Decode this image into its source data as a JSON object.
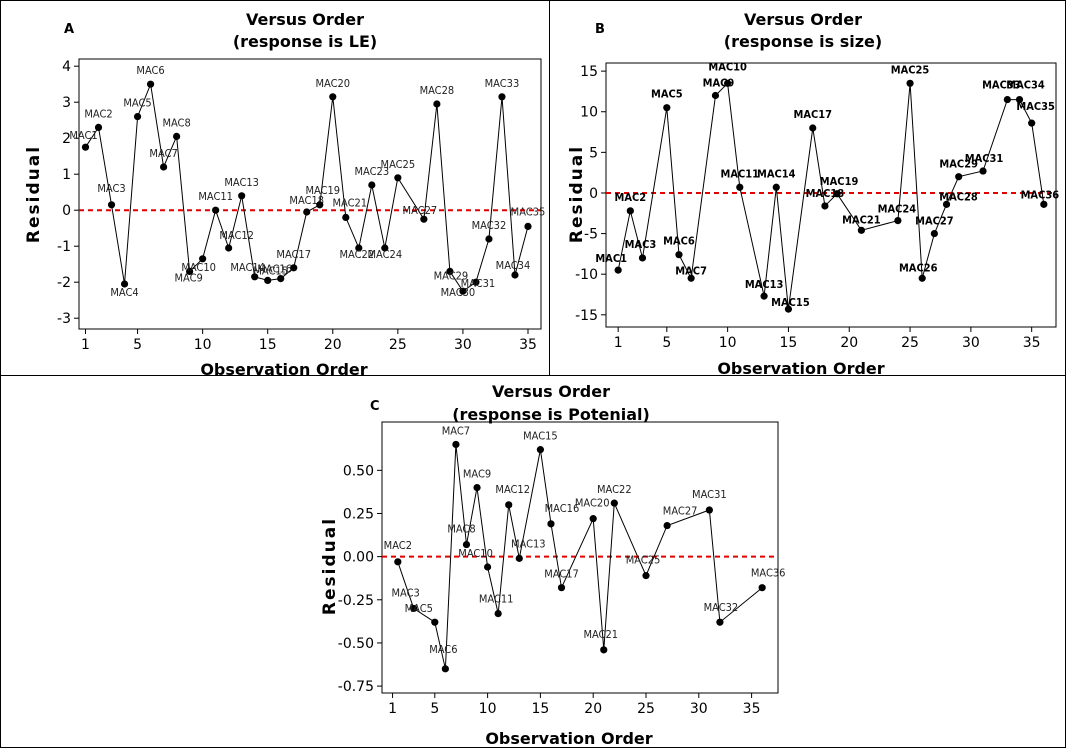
{
  "chart_data": [
    {
      "type": "line",
      "panel_letter": "A",
      "title": "Versus Order",
      "subtitle": "(response is LE)",
      "xlabel": "Observation Order",
      "ylabel": "Residual",
      "xlim": [
        0.5,
        36
      ],
      "ylim": [
        -3.3,
        4.2
      ],
      "xticks": [
        1,
        5,
        10,
        15,
        20,
        25,
        30,
        35
      ],
      "yticks": [
        -3,
        -2,
        -1,
        0,
        1,
        2,
        3,
        4
      ],
      "reference_line": 0,
      "points": [
        {
          "label": "MAC1",
          "x": 1,
          "y": 1.75
        },
        {
          "label": "MAC2",
          "x": 2,
          "y": 2.3
        },
        {
          "label": "MAC3",
          "x": 3,
          "y": 0.15
        },
        {
          "label": "MAC4",
          "x": 4,
          "y": -2.05
        },
        {
          "label": "MAC5",
          "x": 5,
          "y": 2.6
        },
        {
          "label": "MAC6",
          "x": 6,
          "y": 3.5
        },
        {
          "label": "MAC7",
          "x": 7,
          "y": 1.2
        },
        {
          "label": "MAC8",
          "x": 8,
          "y": 2.05
        },
        {
          "label": "MAC9",
          "x": 9,
          "y": -1.7
        },
        {
          "label": "MAC10",
          "x": 10,
          "y": -1.35
        },
        {
          "label": "MAC11",
          "x": 11,
          "y": 0.0
        },
        {
          "label": "MAC12",
          "x": 12,
          "y": -1.05
        },
        {
          "label": "MAC13",
          "x": 13,
          "y": 0.4
        },
        {
          "label": "MAC14",
          "x": 14,
          "y": -1.85
        },
        {
          "label": "MAC15",
          "x": 15,
          "y": -1.95
        },
        {
          "label": "MAC16",
          "x": 16,
          "y": -1.9
        },
        {
          "label": "MAC17",
          "x": 17,
          "y": -1.6
        },
        {
          "label": "MAC18",
          "x": 18,
          "y": -0.05
        },
        {
          "label": "MAC19",
          "x": 19,
          "y": 0.15
        },
        {
          "label": "MAC20",
          "x": 20,
          "y": 3.15
        },
        {
          "label": "MAC21",
          "x": 21,
          "y": -0.2
        },
        {
          "label": "MAC22",
          "x": 22,
          "y": -1.05
        },
        {
          "label": "MAC23",
          "x": 23,
          "y": 0.7
        },
        {
          "label": "MAC24",
          "x": 24,
          "y": -1.05
        },
        {
          "label": "MAC25",
          "x": 25,
          "y": 0.9
        },
        {
          "label": "MAC27",
          "x": 27,
          "y": -0.25
        },
        {
          "label": "MAC28",
          "x": 28,
          "y": 2.95
        },
        {
          "label": "MAC29",
          "x": 29,
          "y": -1.7
        },
        {
          "label": "MAC30",
          "x": 30,
          "y": -2.25
        },
        {
          "label": "MAC31",
          "x": 31,
          "y": -2.0
        },
        {
          "label": "MAC32",
          "x": 32,
          "y": -0.8
        },
        {
          "label": "MAC33",
          "x": 33,
          "y": 3.15
        },
        {
          "label": "MAC34",
          "x": 34,
          "y": -1.8
        },
        {
          "label": "MAC35",
          "x": 35,
          "y": -0.45
        }
      ]
    },
    {
      "type": "line",
      "panel_letter": "B",
      "title": "Versus Order",
      "subtitle": "(response is size)",
      "xlabel": "Observation Order",
      "ylabel": "Residual",
      "xlim": [
        0,
        37
      ],
      "ylim": [
        -16.5,
        16
      ],
      "xticks": [
        1,
        5,
        10,
        15,
        20,
        25,
        30,
        35
      ],
      "yticks": [
        -15,
        -10,
        -5,
        0,
        5,
        10,
        15
      ],
      "reference_line": 0,
      "points": [
        {
          "label": "MAC1",
          "x": 1,
          "y": -9.5
        },
        {
          "label": "MAC2",
          "x": 2,
          "y": -2.2
        },
        {
          "label": "MAC3",
          "x": 3,
          "y": -8.0
        },
        {
          "label": "MAC5",
          "x": 5,
          "y": 10.5
        },
        {
          "label": "MAC6",
          "x": 6,
          "y": -7.6
        },
        {
          "label": "MAC7",
          "x": 7,
          "y": -10.5
        },
        {
          "label": "MAC9",
          "x": 9,
          "y": 12.0
        },
        {
          "label": "MAC10",
          "x": 10,
          "y": 13.5
        },
        {
          "label": "MAC11",
          "x": 11,
          "y": 0.7
        },
        {
          "label": "MAC13",
          "x": 13,
          "y": -12.7
        },
        {
          "label": "MAC14",
          "x": 14,
          "y": 0.7
        },
        {
          "label": "MAC15",
          "x": 15,
          "y": -14.3
        },
        {
          "label": "MAC17",
          "x": 17,
          "y": 8.0
        },
        {
          "label": "MAC18",
          "x": 18,
          "y": -1.6
        },
        {
          "label": "MAC19",
          "x": 19,
          "y": -0.1
        },
        {
          "label": "MAC21",
          "x": 21,
          "y": -4.6
        },
        {
          "label": "MAC24",
          "x": 24,
          "y": -3.4
        },
        {
          "label": "MAC25",
          "x": 25,
          "y": 13.5
        },
        {
          "label": "MAC26",
          "x": 26,
          "y": -10.5
        },
        {
          "label": "MAC27",
          "x": 27,
          "y": -5.0
        },
        {
          "label": "MAC28",
          "x": 28,
          "y": -1.4
        },
        {
          "label": "MAC29",
          "x": 29,
          "y": 2.0
        },
        {
          "label": "MAC31",
          "x": 31,
          "y": 2.7
        },
        {
          "label": "MAC33",
          "x": 33,
          "y": 11.5
        },
        {
          "label": "MAC34",
          "x": 34,
          "y": 11.5
        },
        {
          "label": "MAC35",
          "x": 35,
          "y": 8.6
        },
        {
          "label": "MAC36",
          "x": 36,
          "y": -1.4
        }
      ]
    },
    {
      "type": "line",
      "panel_letter": "C",
      "title": "Versus Order",
      "subtitle": "(response is Potenial)",
      "xlabel": "Observation Order",
      "ylabel": "Residual",
      "xlim": [
        0,
        37.5
      ],
      "ylim": [
        -0.79,
        0.78
      ],
      "xticks": [
        1,
        5,
        10,
        15,
        20,
        25,
        30,
        35
      ],
      "yticks": [
        -0.75,
        -0.5,
        -0.25,
        0.0,
        0.25,
        0.5
      ],
      "ytick_labels": [
        "-0.75",
        "-0.50",
        "-0.25",
        "0.00",
        "0.25",
        "0.50"
      ],
      "reference_line": 0,
      "points": [
        {
          "label": "MAC2",
          "x": 1.5,
          "y": -0.03
        },
        {
          "label": "MAC3",
          "x": 3,
          "y": -0.3
        },
        {
          "label": "MAC5",
          "x": 5,
          "y": -0.38
        },
        {
          "label": "MAC6",
          "x": 6,
          "y": -0.65
        },
        {
          "label": "MAC7",
          "x": 7,
          "y": 0.65
        },
        {
          "label": "MAC8",
          "x": 8,
          "y": 0.07
        },
        {
          "label": "MAC9",
          "x": 9,
          "y": 0.4
        },
        {
          "label": "MAC10",
          "x": 10,
          "y": -0.06
        },
        {
          "label": "MAC11",
          "x": 11,
          "y": -0.33
        },
        {
          "label": "MAC12",
          "x": 12,
          "y": 0.3
        },
        {
          "label": "MAC13",
          "x": 13,
          "y": -0.01
        },
        {
          "label": "MAC15",
          "x": 15,
          "y": 0.62
        },
        {
          "label": "MAC16",
          "x": 16,
          "y": 0.19
        },
        {
          "label": "MAC17",
          "x": 17,
          "y": -0.18
        },
        {
          "label": "MAC20",
          "x": 20,
          "y": 0.22
        },
        {
          "label": "MAC21",
          "x": 21,
          "y": -0.54
        },
        {
          "label": "MAC22",
          "x": 22,
          "y": 0.31
        },
        {
          "label": "MAC25",
          "x": 25,
          "y": -0.11
        },
        {
          "label": "MAC27",
          "x": 27,
          "y": 0.18
        },
        {
          "label": "MAC31",
          "x": 31,
          "y": 0.27
        },
        {
          "label": "MAC32",
          "x": 32,
          "y": -0.38
        },
        {
          "label": "MAC36",
          "x": 36,
          "y": -0.18
        }
      ]
    }
  ],
  "style": {
    "line_color": "#000000",
    "marker_color": "#000000",
    "reference_line_color": "#e00000"
  }
}
